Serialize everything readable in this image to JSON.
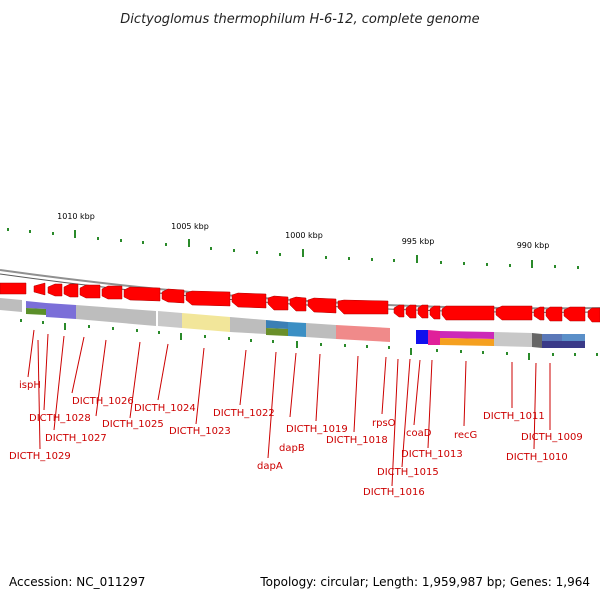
{
  "header": {
    "title": "Dictyoglomus thermophilum H-6-12, complete genome"
  },
  "footer": {
    "accession": "Accession: NC_011297",
    "topology": "Topology: circular; Length: 1,959,987 bp; Genes: 1,964"
  },
  "scale_labels": [
    "1010 kbp",
    "1005 kbp",
    "1000 kbp",
    "995 kbp",
    "990 kbp"
  ],
  "gene_labels": [
    "ispH",
    "DICTH_1028",
    "DICTH_1029",
    "DICTH_1027",
    "DICTH_1026",
    "DICTH_1025",
    "DICTH_1024",
    "DICTH_1023",
    "DICTH_1022",
    "dapA",
    "dapB",
    "DICTH_1019",
    "DICTH_1018",
    "rpsO",
    "DICTH_1016",
    "DICTH_1015",
    "coaD",
    "DICTH_1013",
    "recG",
    "DICTH_1011",
    "DICTH_1010",
    "DICTH_1009"
  ],
  "colors": {
    "gene": "#ff0000",
    "backbone": "#909090",
    "tick": "#2a8a2a",
    "label": "#cc0000"
  }
}
